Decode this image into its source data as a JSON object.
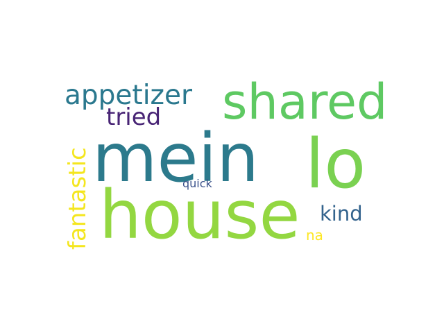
{
  "words": [
    {
      "key": "mein",
      "text": "mein",
      "color": "#2c7a8c"
    },
    {
      "key": "house",
      "text": "house",
      "color": "#93d741"
    },
    {
      "key": "lo",
      "text": "lo",
      "color": "#7ad151"
    },
    {
      "key": "shared",
      "text": "shared",
      "color": "#5ec962"
    },
    {
      "key": "appetizer",
      "text": "appetizer",
      "color": "#2a788e"
    },
    {
      "key": "tried",
      "text": "tried",
      "color": "#482475"
    },
    {
      "key": "kind",
      "text": "kind",
      "color": "#33638d"
    },
    {
      "key": "na",
      "text": "na",
      "color": "#fde725"
    },
    {
      "key": "quick",
      "text": "quick",
      "color": "#3b528b"
    },
    {
      "key": "fantastic",
      "text": "fantastic",
      "color": "#f4e61e"
    }
  ]
}
